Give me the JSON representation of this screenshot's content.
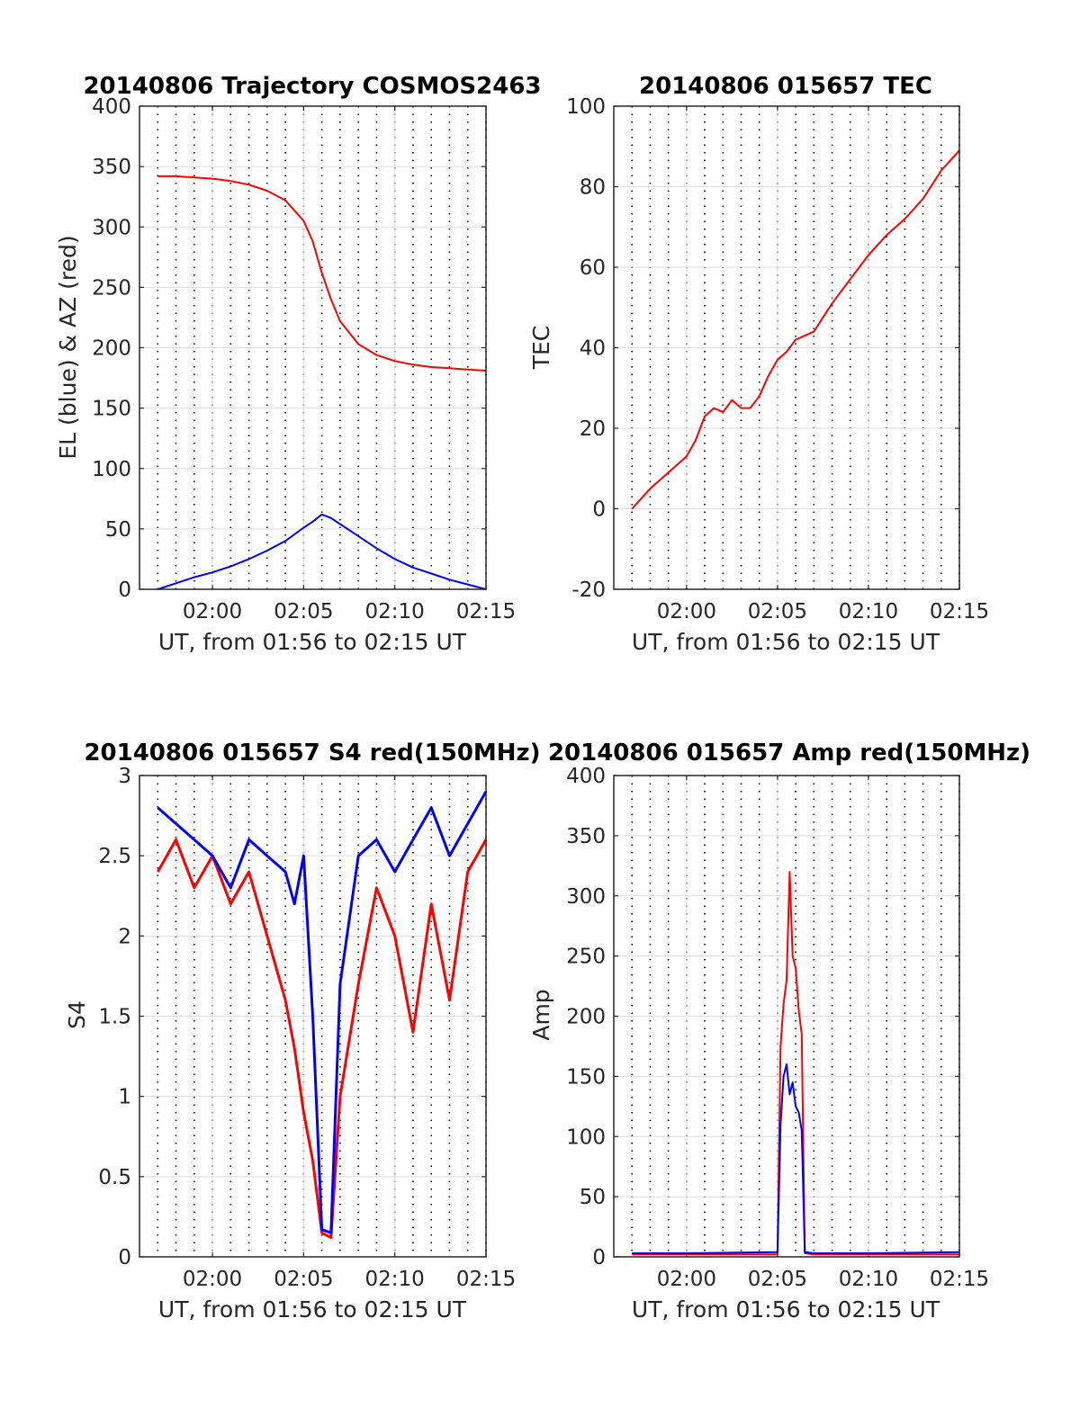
{
  "colors": {
    "el": "#0000ff",
    "az": "#ff0000",
    "tec": "#ff0000",
    "s4_red": "#ff0000",
    "s4_blue": "#0000ff",
    "amp_red": "#ff0000",
    "amp_blue": "#0000ff",
    "grid": "#dcdcdc",
    "axes": "#262626"
  },
  "chart_data": [
    {
      "id": "trajectory",
      "type": "line",
      "title": "20140806 Trajectory COSMOS2463",
      "xlabel": "UT, from 01:56 to 02:15 UT",
      "ylabel": "EL (blue) & AZ (red)",
      "xlim": [
        "01:56",
        "02:15"
      ],
      "ylim": [
        0,
        400
      ],
      "xticks": [
        "02:00",
        "02:05",
        "02:10",
        "02:15"
      ],
      "yticks": [
        "0",
        "50",
        "100",
        "150",
        "200",
        "250",
        "300",
        "350",
        "400"
      ],
      "grid": true,
      "x": [
        "01:57",
        "01:58",
        "01:59",
        "02:00",
        "02:01",
        "02:02",
        "02:03",
        "02:04",
        "02:05",
        "02:05:30",
        "02:06",
        "02:06:30",
        "02:07",
        "02:08",
        "02:09",
        "02:10",
        "02:11",
        "02:12",
        "02:13",
        "02:14",
        "02:15"
      ],
      "series": [
        {
          "name": "AZ",
          "color": "#ff0000",
          "values": [
            342,
            342,
            341,
            340,
            338,
            335,
            330,
            322,
            305,
            288,
            262,
            240,
            222,
            203,
            194,
            189,
            186,
            184,
            183,
            182,
            181
          ]
        },
        {
          "name": "EL",
          "color": "#0000ff",
          "values": [
            0,
            5,
            10,
            14,
            19,
            25,
            32,
            40,
            51,
            56,
            62,
            59,
            54,
            44,
            34,
            25,
            18,
            13,
            8,
            4,
            0
          ]
        }
      ]
    },
    {
      "id": "tec",
      "type": "line",
      "title": "20140806 015657 TEC",
      "xlabel": "UT, from 01:56 to 02:15 UT",
      "ylabel": "TEC",
      "xlim": [
        "01:56",
        "02:15"
      ],
      "ylim": [
        -20,
        100
      ],
      "xticks": [
        "02:00",
        "02:05",
        "02:10",
        "02:15"
      ],
      "yticks": [
        "-20",
        "0",
        "20",
        "40",
        "60",
        "80",
        "100"
      ],
      "grid": true,
      "x": [
        "01:57",
        "01:58",
        "01:59",
        "02:00",
        "02:00:30",
        "02:01",
        "02:01:30",
        "02:02",
        "02:02:30",
        "02:03",
        "02:03:30",
        "02:04",
        "02:04:30",
        "02:05",
        "02:05:30",
        "02:06",
        "02:06:30",
        "02:07",
        "02:08",
        "02:09",
        "02:10",
        "02:11",
        "02:12",
        "02:13",
        "02:14",
        "02:15"
      ],
      "series": [
        {
          "name": "TEC",
          "color": "#ff0000",
          "values": [
            0,
            5,
            9,
            13,
            17,
            23,
            25,
            24,
            27,
            25,
            25,
            28,
            33,
            37,
            39,
            42,
            43,
            44,
            51,
            57,
            63,
            68,
            72,
            77,
            84,
            89
          ]
        }
      ]
    },
    {
      "id": "s4",
      "type": "line",
      "title": "20140806 015657 S4 red(150MHz)",
      "xlabel": "UT, from 01:56 to 02:15 UT",
      "ylabel": "S4",
      "xlim": [
        "01:56",
        "02:15"
      ],
      "ylim": [
        0,
        3
      ],
      "xticks": [
        "02:00",
        "02:05",
        "02:10",
        "02:15"
      ],
      "yticks": [
        "0",
        "0.5",
        "1",
        "1.5",
        "2",
        "2.5",
        "3"
      ],
      "grid": true,
      "x": [
        "01:57",
        "01:58",
        "01:59",
        "02:00",
        "02:01",
        "02:02",
        "02:03",
        "02:04",
        "02:04:30",
        "02:05",
        "02:05:30",
        "02:06",
        "02:06:30",
        "02:07",
        "02:08",
        "02:09",
        "02:10",
        "02:11",
        "02:12",
        "02:13",
        "02:14",
        "02:15"
      ],
      "series": [
        {
          "name": "red",
          "color": "#ff0000",
          "values": [
            2.4,
            2.6,
            2.3,
            2.5,
            2.2,
            2.4,
            2.0,
            1.6,
            1.3,
            0.9,
            0.6,
            0.15,
            0.12,
            1.0,
            1.7,
            2.3,
            2.0,
            1.4,
            2.2,
            1.6,
            2.4,
            2.6
          ]
        },
        {
          "name": "blue",
          "color": "#0000ff",
          "values": [
            2.8,
            2.7,
            2.6,
            2.5,
            2.3,
            2.6,
            2.5,
            2.4,
            2.2,
            2.5,
            1.5,
            0.17,
            0.15,
            1.7,
            2.5,
            2.6,
            2.4,
            2.6,
            2.8,
            2.5,
            2.7,
            2.9
          ]
        }
      ]
    },
    {
      "id": "amp",
      "type": "line",
      "title": "20140806 015657 Amp red(150MHz)",
      "xlabel": "UT, from 01:56 to 02:15 UT",
      "ylabel": "Amp",
      "xlim": [
        "01:56",
        "02:15"
      ],
      "ylim": [
        0,
        400
      ],
      "xticks": [
        "02:00",
        "02:05",
        "02:10",
        "02:15"
      ],
      "yticks": [
        "0",
        "50",
        "100",
        "150",
        "200",
        "250",
        "300",
        "350",
        "400"
      ],
      "grid": true,
      "x": [
        "01:57",
        "02:00",
        "02:05",
        "02:05:10",
        "02:05:20",
        "02:05:30",
        "02:05:40",
        "02:05:50",
        "02:06",
        "02:06:10",
        "02:06:20",
        "02:06:30",
        "02:07",
        "02:10",
        "02:15"
      ],
      "series": [
        {
          "name": "red",
          "color": "#ff0000",
          "values": [
            2,
            2,
            2,
            175,
            210,
            230,
            320,
            250,
            240,
            205,
            185,
            3,
            2,
            2,
            2
          ]
        },
        {
          "name": "blue",
          "color": "#0000ff",
          "values": [
            3,
            3,
            4,
            110,
            150,
            160,
            135,
            145,
            125,
            120,
            105,
            4,
            3,
            3,
            4
          ]
        }
      ]
    }
  ]
}
